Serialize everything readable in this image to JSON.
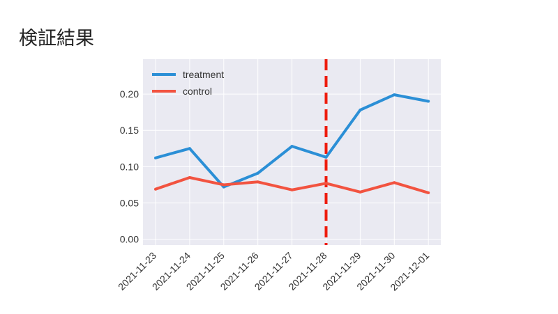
{
  "slide": {
    "title": "検証結果"
  },
  "chart_data": {
    "type": "line",
    "x": [
      "2021-11-23",
      "2021-11-24",
      "2021-11-25",
      "2021-11-26",
      "2021-11-27",
      "2021-11-28",
      "2021-11-29",
      "2021-11-30",
      "2021-12-01"
    ],
    "series": [
      {
        "name": "treatment",
        "color": "#2b8fd6",
        "values": [
          0.112,
          0.125,
          0.072,
          0.091,
          0.128,
          0.113,
          0.178,
          0.199,
          0.19
        ]
      },
      {
        "name": "control",
        "color": "#f25340",
        "values": [
          0.069,
          0.085,
          0.075,
          0.079,
          0.068,
          0.077,
          0.065,
          0.078,
          0.064
        ]
      }
    ],
    "yticks": [
      "0.00",
      "0.05",
      "0.10",
      "0.15",
      "0.20"
    ],
    "ylim": [
      -0.008,
      0.248
    ],
    "xlabel": "",
    "ylabel": "",
    "grid": true,
    "legend_position": "upper-left",
    "annotations": [
      {
        "type": "vertical-dashed-line",
        "x": "2021-11-28",
        "color": "#ee1c0e"
      }
    ]
  }
}
